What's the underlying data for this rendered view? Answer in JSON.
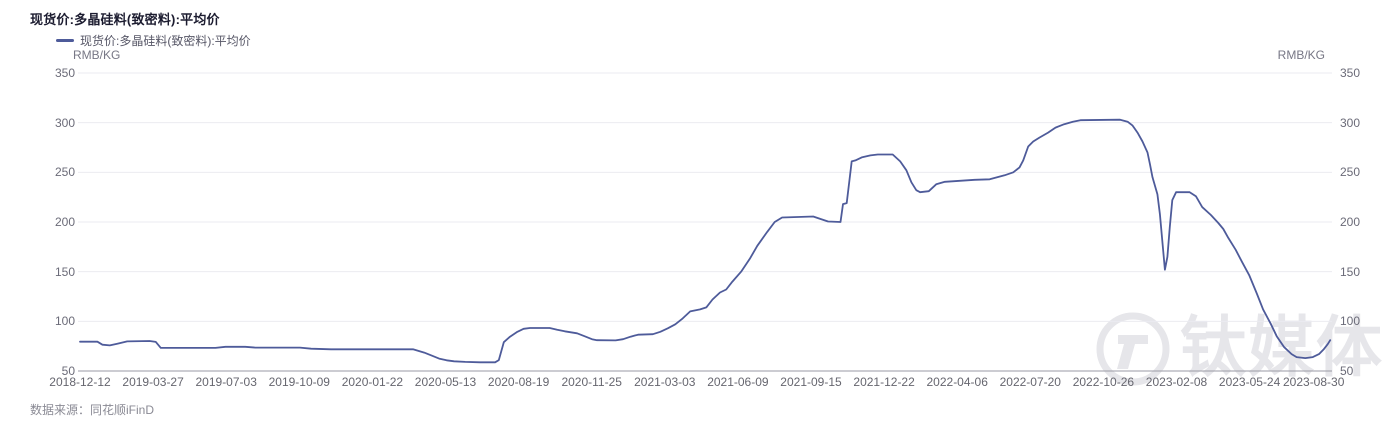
{
  "header": {
    "title": "现货价:多晶硅料(致密料):平均价"
  },
  "legend": {
    "label": "现货价:多晶硅料(致密料):平均价",
    "swatch_color": "#4e5b9a"
  },
  "units": {
    "left": "RMB/KG",
    "right": "RMB/KG"
  },
  "source": {
    "label": "数据来源：同花顺iFinD"
  },
  "watermark": {
    "text": "钛媒体"
  },
  "colors": {
    "line": "#4e5b9a",
    "grid": "#ebebf1",
    "axis_line": "#9a9aa4",
    "title_text": "#1c1c30",
    "axis_text": "#6b6b78",
    "watermark": "#e6e6ea"
  },
  "chart_data": {
    "type": "line",
    "title": "现货价:多晶硅料(致密料):平均价",
    "xlabel": "",
    "ylabel": "RMB/KG",
    "ylim": [
      50,
      350
    ],
    "y_ticks": [
      350,
      300,
      250,
      200,
      150,
      100,
      50
    ],
    "grid": true,
    "legend_position": "top-left",
    "x_range": {
      "start": "2018-12-12",
      "end": "2023-08-30"
    },
    "x_tick_labels": [
      "2018-12-12",
      "2019-03-27",
      "2019-07-03",
      "2019-10-09",
      "2020-01-22",
      "2020-05-13",
      "2020-08-19",
      "2020-11-25",
      "2021-03-03",
      "2021-06-09",
      "2021-09-15",
      "2021-12-22",
      "2022-04-06",
      "2022-07-20",
      "2022-10-26",
      "2023-02-08",
      "2023-05-24",
      "2023-08-30"
    ],
    "points_format": [
      "x_percent_along_date_axis",
      "price_rmb_per_kg"
    ],
    "series": [
      {
        "name": "现货价:多晶硅料(致密料):平均价",
        "color": "#4e5b9a",
        "points": [
          [
            0.0,
            79.5
          ],
          [
            1.4,
            79.5
          ],
          [
            1.8,
            76.5
          ],
          [
            2.4,
            75.8
          ],
          [
            3.0,
            77.5
          ],
          [
            3.8,
            79.8
          ],
          [
            5.6,
            80.2
          ],
          [
            6.1,
            79.3
          ],
          [
            6.5,
            73.3
          ],
          [
            10.9,
            73.3
          ],
          [
            11.7,
            74.4
          ],
          [
            13.3,
            74.4
          ],
          [
            14.1,
            73.6
          ],
          [
            17.7,
            73.6
          ],
          [
            18.6,
            72.4
          ],
          [
            20.2,
            71.8
          ],
          [
            26.8,
            71.8
          ],
          [
            27.7,
            68.5
          ],
          [
            28.3,
            65.5
          ],
          [
            28.9,
            62.5
          ],
          [
            29.5,
            60.8
          ],
          [
            30.1,
            59.8
          ],
          [
            31.0,
            59.2
          ],
          [
            32.2,
            58.8
          ],
          [
            33.4,
            58.8
          ],
          [
            33.7,
            61.0
          ],
          [
            34.1,
            79.0
          ],
          [
            34.6,
            84.5
          ],
          [
            35.2,
            89.5
          ],
          [
            35.7,
            92.5
          ],
          [
            36.2,
            93.3
          ],
          [
            37.8,
            93.3
          ],
          [
            38.4,
            91.5
          ],
          [
            39.0,
            90.0
          ],
          [
            40.0,
            88.0
          ],
          [
            40.6,
            85.0
          ],
          [
            41.2,
            82.0
          ],
          [
            41.6,
            81.0
          ],
          [
            43.1,
            80.8
          ],
          [
            43.7,
            82.0
          ],
          [
            44.3,
            84.5
          ],
          [
            44.9,
            86.5
          ],
          [
            46.1,
            87.0
          ],
          [
            46.7,
            89.5
          ],
          [
            47.3,
            93.0
          ],
          [
            47.9,
            97.0
          ],
          [
            48.5,
            103.0
          ],
          [
            49.1,
            110.0
          ],
          [
            49.9,
            112.0
          ],
          [
            50.4,
            114.0
          ],
          [
            50.9,
            122.0
          ],
          [
            51.5,
            129.0
          ],
          [
            52.0,
            132.0
          ],
          [
            52.5,
            140.0
          ],
          [
            53.2,
            150.0
          ],
          [
            53.9,
            163.0
          ],
          [
            54.5,
            176.0
          ],
          [
            55.3,
            190.0
          ],
          [
            55.9,
            200.0
          ],
          [
            56.5,
            204.5
          ],
          [
            59.0,
            205.5
          ],
          [
            59.6,
            203.0
          ],
          [
            60.2,
            200.5
          ],
          [
            61.2,
            200.0
          ],
          [
            61.4,
            218.0
          ],
          [
            61.7,
            219.0
          ],
          [
            61.9,
            240.0
          ],
          [
            62.1,
            261.0
          ],
          [
            62.4,
            262.0
          ],
          [
            62.9,
            265.0
          ],
          [
            63.6,
            267.0
          ],
          [
            64.2,
            268.0
          ],
          [
            65.4,
            268.0
          ],
          [
            66.0,
            261.0
          ],
          [
            66.5,
            252.0
          ],
          [
            66.9,
            240.0
          ],
          [
            67.3,
            232.0
          ],
          [
            67.6,
            230.0
          ],
          [
            68.3,
            231.0
          ],
          [
            68.9,
            238.0
          ],
          [
            69.6,
            240.5
          ],
          [
            72.0,
            242.5
          ],
          [
            73.2,
            243.0
          ],
          [
            74.4,
            247.0
          ],
          [
            75.1,
            250.0
          ],
          [
            75.6,
            255.0
          ],
          [
            75.9,
            262.0
          ],
          [
            76.3,
            276.0
          ],
          [
            76.7,
            281.0
          ],
          [
            77.2,
            285.0
          ],
          [
            77.9,
            290.0
          ],
          [
            78.5,
            295.0
          ],
          [
            79.2,
            298.5
          ],
          [
            79.9,
            301.0
          ],
          [
            80.5,
            302.5
          ],
          [
            83.7,
            303.0
          ],
          [
            84.3,
            301.0
          ],
          [
            84.7,
            297.0
          ],
          [
            85.1,
            290.0
          ],
          [
            85.5,
            281.0
          ],
          [
            85.9,
            270.0
          ],
          [
            86.1,
            258.0
          ],
          [
            86.3,
            245.0
          ],
          [
            86.7,
            228.0
          ],
          [
            86.9,
            208.0
          ],
          [
            87.1,
            180.0
          ],
          [
            87.3,
            152.0
          ],
          [
            87.5,
            165.0
          ],
          [
            87.7,
            195.0
          ],
          [
            87.9,
            222.0
          ],
          [
            88.2,
            230.0
          ],
          [
            89.3,
            230.0
          ],
          [
            89.8,
            226.0
          ],
          [
            90.3,
            215.0
          ],
          [
            91.0,
            207.0
          ],
          [
            91.6,
            199.0
          ],
          [
            92.0,
            193.0
          ],
          [
            92.4,
            184.0
          ],
          [
            93.0,
            172.0
          ],
          [
            93.5,
            160.0
          ],
          [
            94.1,
            146.0
          ],
          [
            94.7,
            128.0
          ],
          [
            95.2,
            112.0
          ],
          [
            95.8,
            98.0
          ],
          [
            96.3,
            85.0
          ],
          [
            96.9,
            74.0
          ],
          [
            97.5,
            67.0
          ],
          [
            97.9,
            64.0
          ],
          [
            98.6,
            63.0
          ],
          [
            99.2,
            64.0
          ],
          [
            99.7,
            67.0
          ],
          [
            100.1,
            72.0
          ],
          [
            100.4,
            77.0
          ],
          [
            100.6,
            81.0
          ]
        ]
      }
    ]
  }
}
